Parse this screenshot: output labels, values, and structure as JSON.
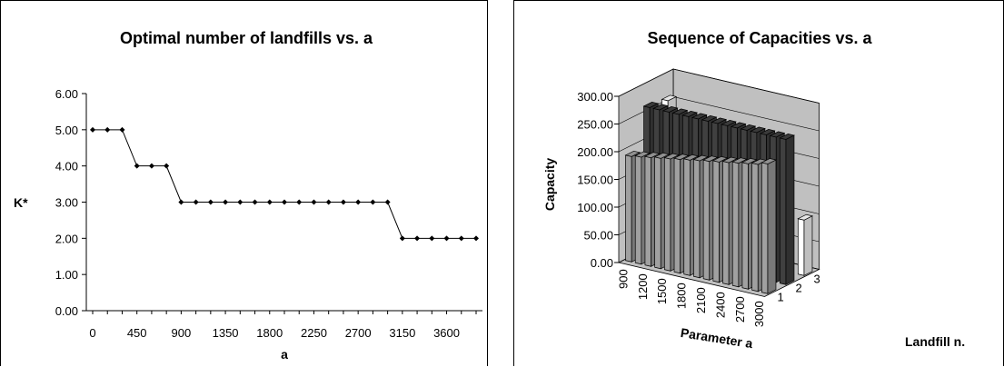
{
  "chart_data": [
    {
      "type": "line",
      "title": "Optimal number of landfills vs. a",
      "xlabel": "a",
      "ylabel": "K*",
      "ylim": [
        0,
        6
      ],
      "y_ticks": [
        "0.00",
        "1.00",
        "2.00",
        "3.00",
        "4.00",
        "5.00",
        "6.00"
      ],
      "x_tick_labels": [
        "0",
        "450",
        "900",
        "1350",
        "1800",
        "2250",
        "2700",
        "3150",
        "3600"
      ],
      "x": [
        0,
        150,
        300,
        450,
        600,
        750,
        900,
        1050,
        1200,
        1350,
        1500,
        1650,
        1800,
        1950,
        2100,
        2250,
        2400,
        2550,
        2700,
        2850,
        3000,
        3150,
        3300,
        3450,
        3600,
        3750,
        3900
      ],
      "values": [
        5,
        5,
        5,
        4,
        4,
        4,
        3,
        3,
        3,
        3,
        3,
        3,
        3,
        3,
        3,
        3,
        3,
        3,
        3,
        3,
        3,
        2,
        2,
        2,
        2,
        2,
        2
      ],
      "grid": false,
      "color": "#000000"
    },
    {
      "type": "bar",
      "subtype": "3d-column",
      "title": "Sequence of Capacities vs. a",
      "xlabel": "Parameter a",
      "ylabel": "Capacity",
      "zlabel": "Landfill n.",
      "ylim": [
        0,
        300
      ],
      "y_ticks": [
        "0.00",
        "50.00",
        "100.00",
        "150.00",
        "200.00",
        "250.00",
        "300.00"
      ],
      "x_tick_labels": [
        "900",
        "1200",
        "1500",
        "1800",
        "2100",
        "2400",
        "2700",
        "3000"
      ],
      "z_tick_labels": [
        "1",
        "2",
        "3"
      ],
      "categories": [
        900,
        1050,
        1200,
        1350,
        1500,
        1650,
        1800,
        1950,
        2100,
        2250,
        2400,
        2550,
        2700,
        2850,
        3000
      ],
      "series": [
        {
          "name": "1",
          "color": "#a0a0a0",
          "values": [
            190,
            193,
            196,
            199,
            202,
            205,
            208,
            211,
            214,
            217,
            220,
            223,
            226,
            229,
            234
          ]
        },
        {
          "name": "2",
          "color": "#404040",
          "values": [
            262,
            262,
            262,
            262,
            262,
            262,
            262,
            262,
            262,
            262,
            262,
            262,
            262,
            262,
            262
          ]
        },
        {
          "name": "3",
          "color": "#ffffff",
          "values": [
            258,
            0,
            0,
            0,
            0,
            0,
            0,
            0,
            0,
            0,
            0,
            0,
            0,
            0,
            100
          ]
        }
      ],
      "grid": true
    }
  ]
}
